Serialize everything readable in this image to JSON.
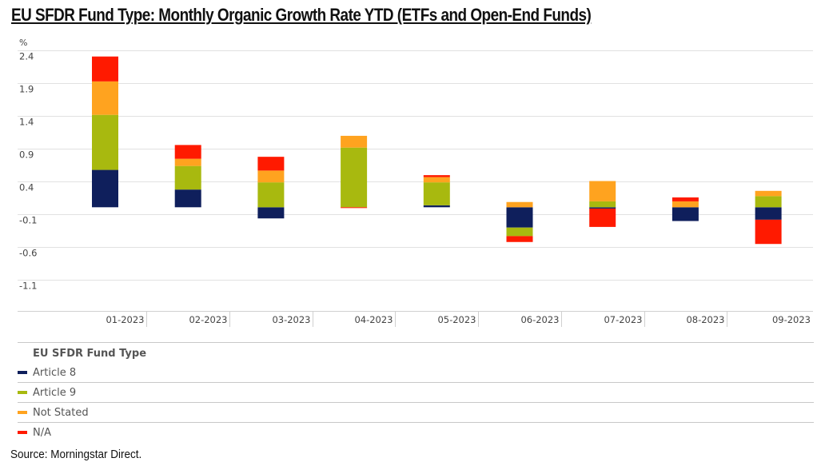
{
  "title": "EU SFDR Fund Type: Monthly Organic Growth Rate YTD (ETFs and Open-End Funds)",
  "source": "Source: Morningstar Direct.",
  "chart_data": {
    "type": "bar",
    "stacked": true,
    "title": "EU SFDR Fund Type: Monthly Organic Growth Rate YTD (ETFs and Open-End Funds)",
    "xlabel": "",
    "ylabel": "%",
    "ylim": [
      -1.6,
      2.4
    ],
    "yticks": [
      2.4,
      1.9,
      1.4,
      0.9,
      0.4,
      -0.1,
      -0.6,
      -1.1
    ],
    "ytick_labels": [
      "2.4",
      "1.9",
      "1.4",
      "0.9",
      "0.4",
      "-0.1",
      "-0.6",
      "-1.1"
    ],
    "grid": true,
    "legend_title": "EU SFDR Fund Type",
    "legend_position": "bottom",
    "categories": [
      "01-2023",
      "02-2023",
      "03-2023",
      "04-2023",
      "05-2023",
      "06-2023",
      "07-2023",
      "08-2023",
      "09-2023"
    ],
    "series": [
      {
        "name": "Article 8",
        "color": "#0f1f5c",
        "values": [
          0.57,
          0.27,
          -0.17,
          0.0,
          0.03,
          -0.31,
          -0.02,
          -0.21,
          -0.19
        ]
      },
      {
        "name": "Article 9",
        "color": "#a8b90f",
        "values": [
          0.84,
          0.36,
          0.38,
          0.91,
          0.35,
          -0.13,
          0.09,
          0.0,
          0.17
        ]
      },
      {
        "name": "Not Stated",
        "color": "#ffa31f",
        "values": [
          0.51,
          0.11,
          0.18,
          0.18,
          0.08,
          0.08,
          0.31,
          0.09,
          0.08
        ]
      },
      {
        "name": "N/A",
        "color": "#ff1a00",
        "values": [
          0.38,
          0.21,
          0.21,
          -0.01,
          0.03,
          -0.09,
          -0.28,
          0.06,
          -0.37
        ]
      }
    ]
  }
}
